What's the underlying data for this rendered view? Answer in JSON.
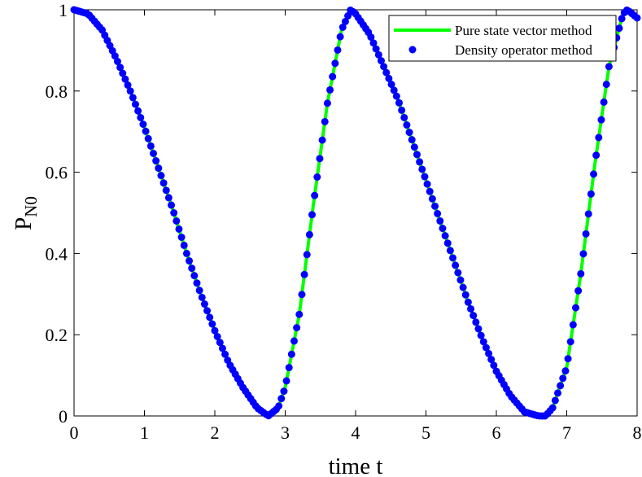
{
  "chart_data": {
    "type": "line",
    "title": "",
    "xlabel": "time t",
    "ylabel": {
      "main": "P",
      "sub": "N0"
    },
    "xlim": [
      0,
      8
    ],
    "ylim": [
      0,
      1
    ],
    "xticks": [
      0,
      1,
      2,
      3,
      4,
      5,
      6,
      7,
      8
    ],
    "yticks": [
      0,
      0.2,
      0.4,
      0.6,
      0.8,
      1
    ],
    "xtick_labels": [
      "0",
      "1",
      "2",
      "3",
      "4",
      "5",
      "6",
      "7",
      "8"
    ],
    "ytick_labels": [
      "0",
      "0.2",
      "0.4",
      "0.6",
      "0.8",
      "1"
    ],
    "grid": false,
    "legend_position": "top-right",
    "series": [
      {
        "name": "Pure state vector method",
        "style": "line",
        "color": "#00ff00",
        "x": [
          0,
          0.2,
          0.4,
          0.6,
          0.8,
          1.0,
          1.2,
          1.4,
          1.6,
          1.8,
          2.0,
          2.2,
          2.4,
          2.6,
          2.76,
          2.9,
          3.0,
          3.2,
          3.4,
          3.6,
          3.8,
          3.93,
          4.0,
          4.2,
          4.4,
          4.6,
          4.8,
          5.0,
          5.2,
          5.4,
          5.6,
          5.8,
          6.0,
          6.2,
          6.4,
          6.6,
          6.7,
          6.8,
          7.0,
          7.2,
          7.4,
          7.6,
          7.8,
          7.86,
          8.0
        ],
        "y": [
          1.0,
          0.99,
          0.95,
          0.88,
          0.8,
          0.71,
          0.61,
          0.51,
          0.4,
          0.3,
          0.21,
          0.13,
          0.07,
          0.02,
          0.0,
          0.02,
          0.07,
          0.25,
          0.52,
          0.77,
          0.95,
          1.0,
          0.99,
          0.94,
          0.86,
          0.78,
          0.68,
          0.58,
          0.48,
          0.38,
          0.28,
          0.19,
          0.11,
          0.05,
          0.01,
          0.0,
          0.0,
          0.02,
          0.12,
          0.35,
          0.62,
          0.86,
          0.99,
          1.0,
          0.98
        ]
      },
      {
        "name": "Density operator method",
        "style": "markers",
        "color": "#0000ff",
        "x": [
          0,
          0.2,
          0.4,
          0.6,
          0.8,
          1.0,
          1.2,
          1.4,
          1.6,
          1.8,
          2.0,
          2.2,
          2.4,
          2.6,
          2.76,
          2.9,
          3.0,
          3.2,
          3.4,
          3.6,
          3.8,
          3.93,
          4.0,
          4.2,
          4.4,
          4.6,
          4.8,
          5.0,
          5.2,
          5.4,
          5.6,
          5.8,
          6.0,
          6.2,
          6.4,
          6.6,
          6.7,
          6.8,
          7.0,
          7.2,
          7.4,
          7.6,
          7.8,
          7.86,
          8.0
        ],
        "y": [
          1.0,
          0.99,
          0.95,
          0.88,
          0.8,
          0.71,
          0.61,
          0.51,
          0.4,
          0.3,
          0.21,
          0.13,
          0.07,
          0.02,
          0.0,
          0.02,
          0.07,
          0.25,
          0.52,
          0.77,
          0.95,
          1.0,
          0.99,
          0.94,
          0.86,
          0.78,
          0.68,
          0.58,
          0.48,
          0.38,
          0.28,
          0.19,
          0.11,
          0.05,
          0.01,
          0.0,
          0.0,
          0.02,
          0.12,
          0.35,
          0.62,
          0.86,
          0.99,
          1.0,
          0.98
        ]
      }
    ]
  }
}
